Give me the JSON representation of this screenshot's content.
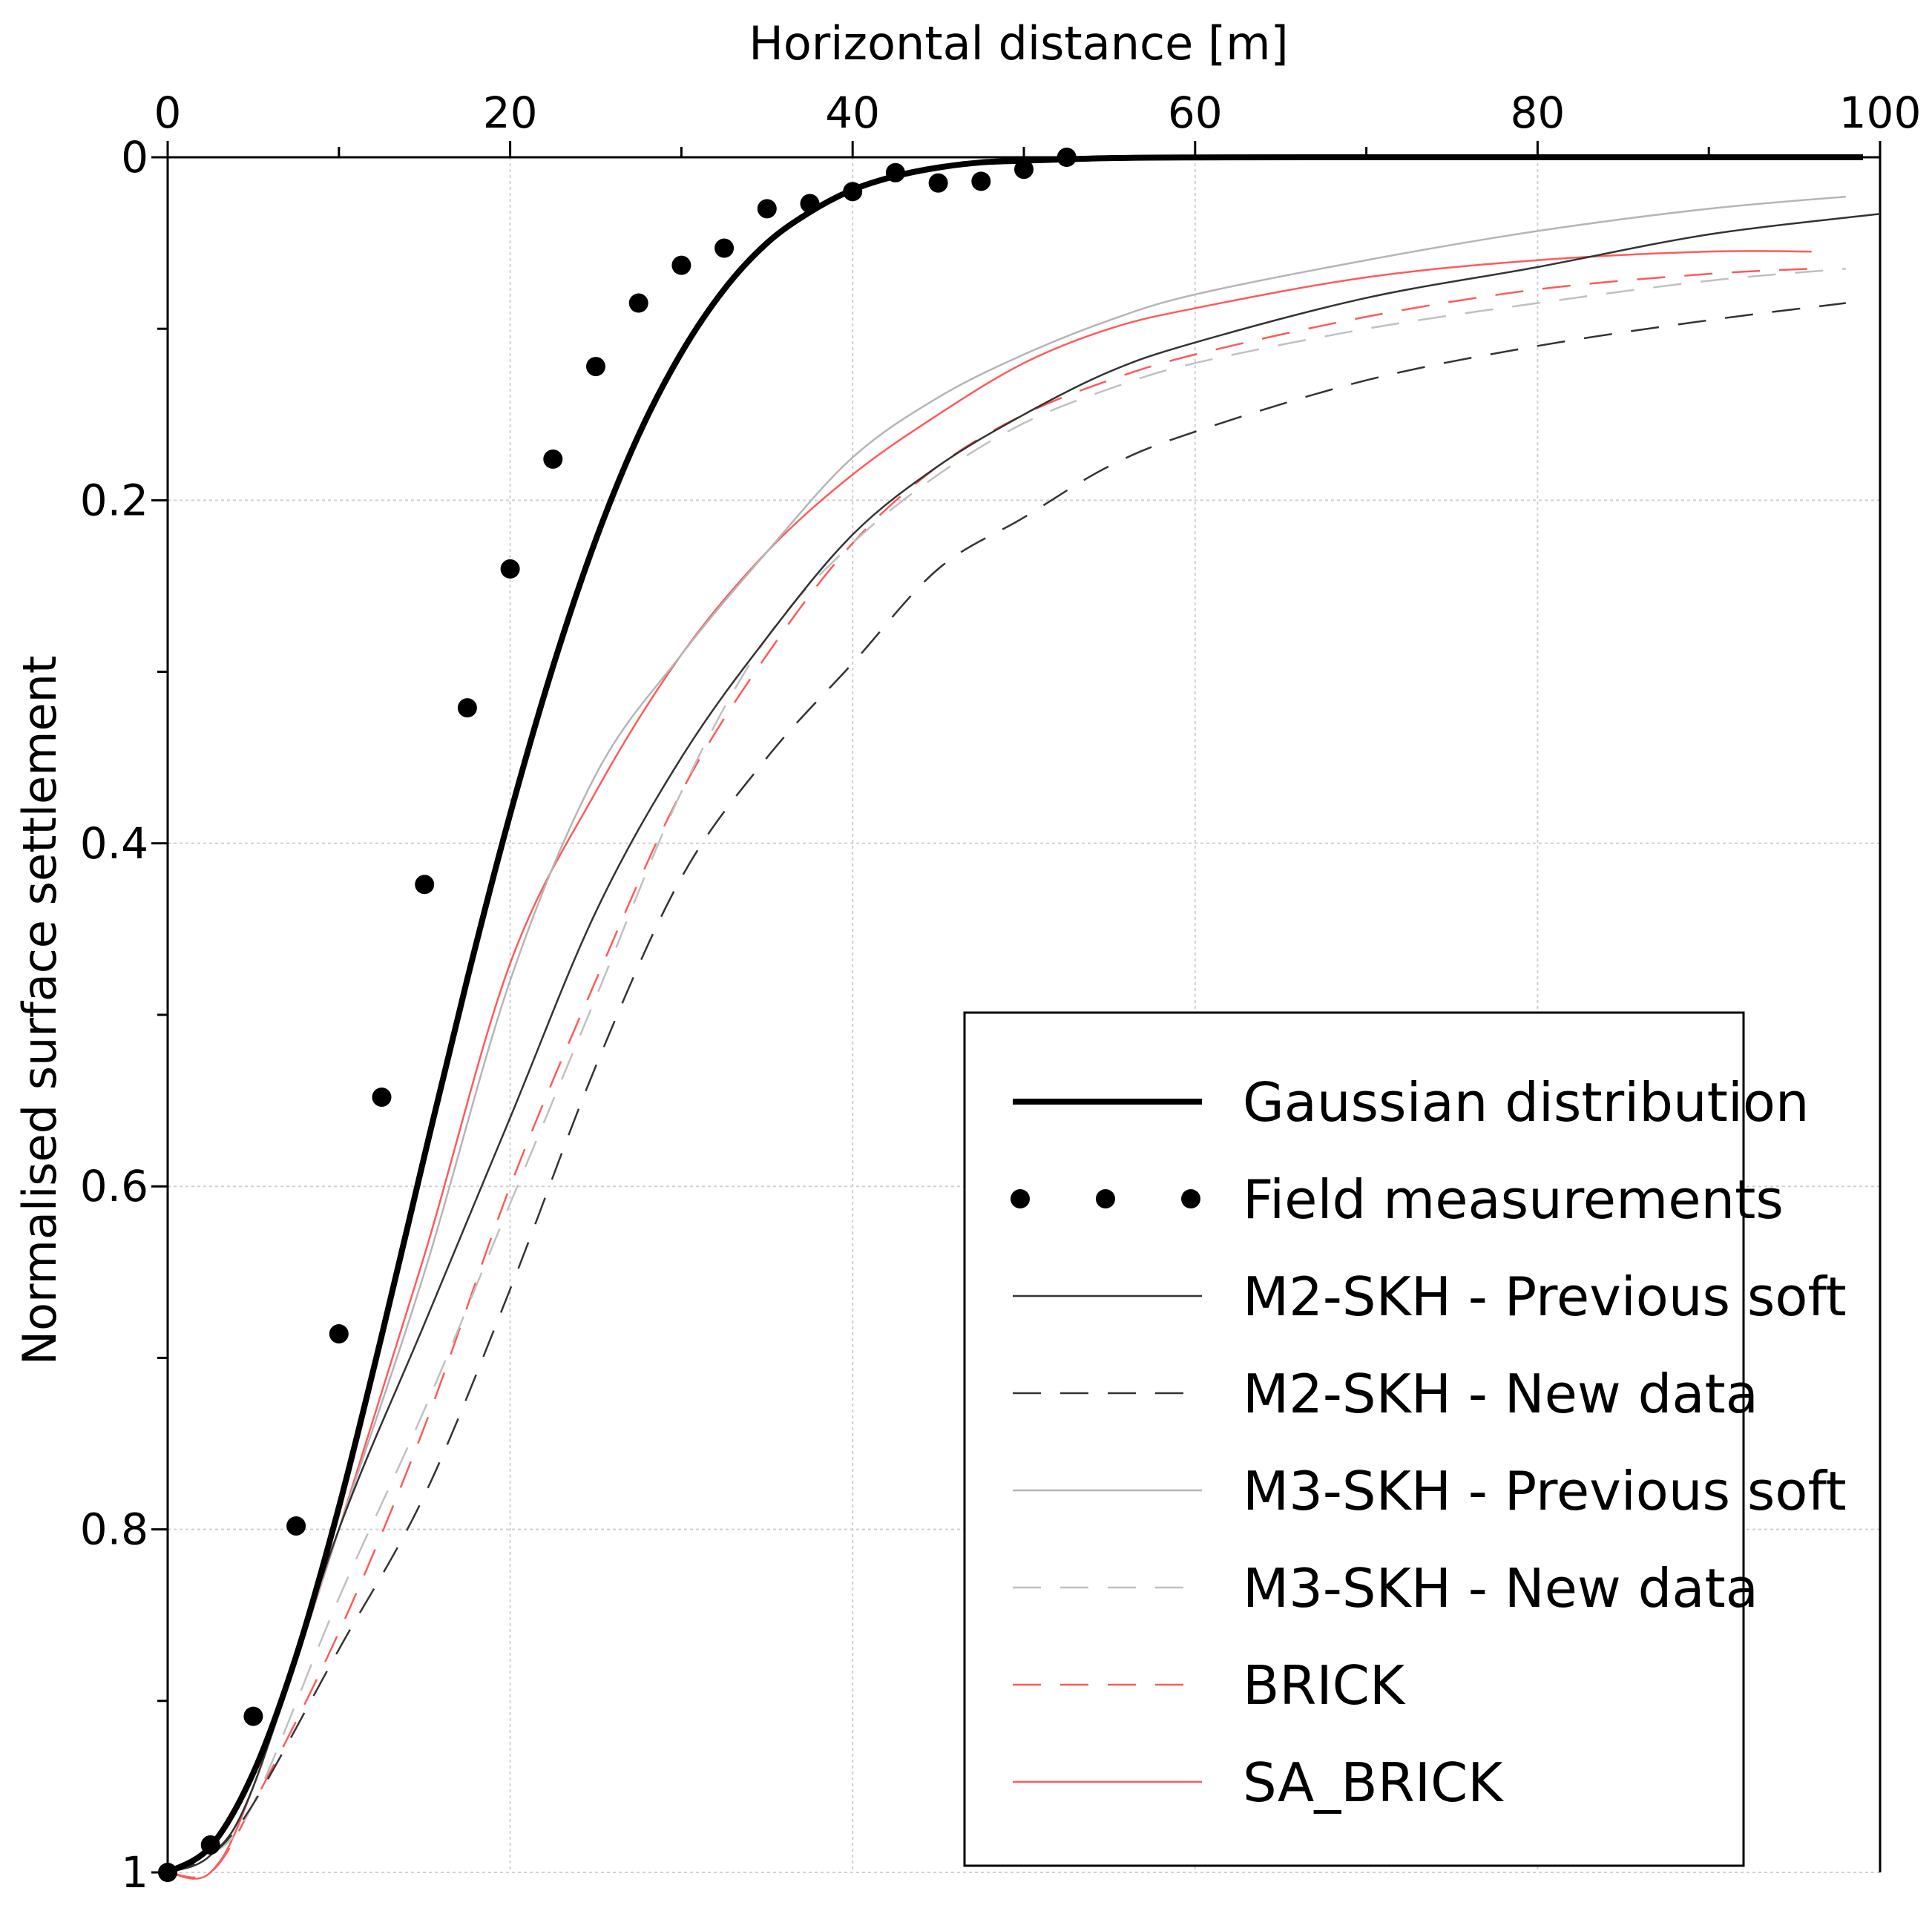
{
  "chart_data": {
    "type": "line",
    "title": "",
    "xlabel": "Horizontal distance [m]",
    "ylabel": "Normalised surface settlement",
    "xlim": [
      0,
      100
    ],
    "ylim": [
      0,
      1
    ],
    "y_inverted": true,
    "x_axis_position": "top",
    "grid": true,
    "x_ticks": [
      0,
      20,
      40,
      60,
      80,
      100
    ],
    "x_tick_labels": [
      "0",
      "20",
      "40",
      "60",
      "80",
      "100"
    ],
    "y_ticks": [
      0,
      0.2,
      0.4,
      0.6,
      0.8,
      1
    ],
    "y_tick_labels": [
      "0",
      "0.2",
      "0.4",
      "0.6",
      "0.8",
      "1"
    ],
    "legend_position": "bottom-right",
    "series": [
      {
        "name": "Gaussian distribution",
        "style": "thick-solid",
        "color": "#000000",
        "x": [
          0,
          2.5,
          5,
          7.5,
          10,
          12.5,
          15,
          17.5,
          20,
          22.5,
          25,
          27.5,
          30,
          32.5,
          35,
          37.5,
          40,
          42.5,
          45,
          47.5,
          50,
          55,
          60,
          70,
          80,
          90,
          99
        ],
        "y": [
          1.0,
          0.985,
          0.942,
          0.874,
          0.787,
          0.687,
          0.582,
          0.479,
          0.383,
          0.297,
          0.223,
          0.162,
          0.114,
          0.077,
          0.05,
          0.032,
          0.019,
          0.011,
          0.006,
          0.003,
          0.002,
          0.0005,
          0.0001,
          0,
          0,
          0,
          0
        ]
      },
      {
        "name": "Field measurements",
        "style": "markers",
        "color": "#000000",
        "x": [
          0,
          2.5,
          5,
          7.5,
          10,
          12.5,
          15,
          17.5,
          20,
          22.5,
          25,
          27.5,
          30,
          32.5,
          35,
          37.5,
          40,
          42.5,
          45,
          47.5,
          50,
          52.5
        ],
        "y": [
          1.0,
          0.984,
          0.909,
          0.798,
          0.686,
          0.548,
          0.424,
          0.321,
          0.24,
          0.176,
          0.122,
          0.085,
          0.063,
          0.053,
          0.03,
          0.027,
          0.02,
          0.009,
          0.015,
          0.014,
          0.007,
          0.0
        ]
      },
      {
        "name": "M2-SKH - Previous soft",
        "style": "thin-solid",
        "color": "#333333",
        "x": [
          0,
          2.5,
          5,
          10,
          15,
          20,
          25,
          30,
          35,
          40,
          45,
          50,
          55,
          60,
          70,
          80,
          90,
          100
        ],
        "y": [
          1.0,
          0.99,
          0.95,
          0.8,
          0.68,
          0.56,
          0.44,
          0.35,
          0.28,
          0.22,
          0.18,
          0.15,
          0.125,
          0.108,
          0.082,
          0.064,
          0.045,
          0.033
        ]
      },
      {
        "name": "M2-SKH - New data",
        "style": "long-dash",
        "color": "#333333",
        "x": [
          0,
          2.5,
          5,
          10,
          15,
          20,
          25,
          30,
          35,
          40,
          45,
          50,
          55,
          60,
          70,
          80,
          90,
          98
        ],
        "y": [
          1.0,
          0.99,
          0.96,
          0.87,
          0.78,
          0.66,
          0.53,
          0.42,
          0.35,
          0.295,
          0.24,
          0.21,
          0.18,
          0.16,
          0.13,
          0.11,
          0.095,
          0.085
        ]
      },
      {
        "name": "M3-SKH - Previous soft",
        "style": "thin-solid",
        "color": "#b5b5b5",
        "x": [
          0,
          2.5,
          5,
          10,
          15,
          20,
          25,
          30,
          35,
          40,
          45,
          50,
          55,
          60,
          70,
          80,
          90,
          98
        ],
        "y": [
          1.0,
          0.99,
          0.95,
          0.8,
          0.65,
          0.48,
          0.36,
          0.29,
          0.23,
          0.175,
          0.14,
          0.115,
          0.095,
          0.08,
          0.06,
          0.043,
          0.03,
          0.023
        ]
      },
      {
        "name": "M3-SKH - New data",
        "style": "long-dash",
        "color": "#c0c0c0",
        "x": [
          0,
          2.5,
          5,
          10,
          15,
          20,
          25,
          30,
          35,
          40,
          45,
          50,
          55,
          60,
          70,
          80,
          90,
          98
        ],
        "y": [
          1.0,
          0.99,
          0.96,
          0.84,
          0.73,
          0.61,
          0.49,
          0.37,
          0.28,
          0.225,
          0.185,
          0.155,
          0.135,
          0.12,
          0.1,
          0.085,
          0.072,
          0.065
        ]
      },
      {
        "name": "BRICK",
        "style": "long-dash",
        "color": "#ff5a5a",
        "x": [
          0,
          2.5,
          5,
          10,
          15,
          20,
          25,
          30,
          35,
          40,
          45,
          50,
          55,
          60,
          70,
          80,
          90,
          96
        ],
        "y": [
          1.0,
          1.0,
          0.96,
          0.86,
          0.74,
          0.6,
          0.48,
          0.37,
          0.29,
          0.225,
          0.18,
          0.15,
          0.13,
          0.115,
          0.093,
          0.077,
          0.068,
          0.065
        ]
      },
      {
        "name": "SA_BRICK",
        "style": "thin-solid",
        "color": "#ff5a5a",
        "x": [
          0,
          2.5,
          5,
          10,
          15,
          20,
          25,
          30,
          35,
          40,
          45,
          50,
          55,
          60,
          70,
          80,
          90,
          96
        ],
        "y": [
          1.0,
          1.0,
          0.95,
          0.8,
          0.64,
          0.47,
          0.37,
          0.29,
          0.23,
          0.185,
          0.15,
          0.12,
          0.1,
          0.088,
          0.07,
          0.06,
          0.055,
          0.055
        ]
      }
    ]
  }
}
